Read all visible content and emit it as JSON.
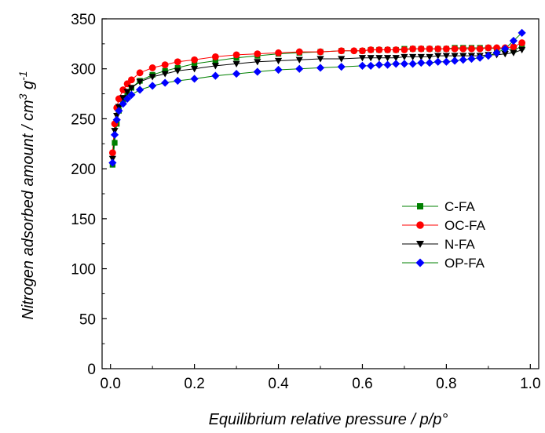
{
  "chart_data": {
    "type": "scatter",
    "title": "",
    "xlabel": "Equilibrium relative pressure / p/p°",
    "ylabel_main": "Nitrogen adsorbed amount / cm",
    "ylabel_sup1": "3",
    "ylabel_mid": " g",
    "ylabel_sup2": "-1",
    "xlim": [
      -0.02,
      1.02
    ],
    "ylim": [
      0,
      350
    ],
    "x_ticks": [
      "0.0",
      "0.2",
      "0.4",
      "0.6",
      "0.8",
      "1.0"
    ],
    "y_ticks": [
      "0",
      "50",
      "100",
      "150",
      "200",
      "250",
      "300",
      "350"
    ],
    "grid": false,
    "legend_position": "center-right",
    "series": [
      {
        "name": "C-FA",
        "marker": "square",
        "color": "#008000",
        "line_color": "#008000",
        "x": [
          0.005,
          0.01,
          0.015,
          0.02,
          0.03,
          0.04,
          0.05,
          0.07,
          0.1,
          0.13,
          0.16,
          0.2,
          0.25,
          0.3,
          0.35,
          0.4,
          0.45,
          0.5,
          0.55,
          0.6,
          0.62,
          0.64,
          0.66,
          0.68,
          0.7,
          0.72,
          0.74,
          0.76,
          0.78,
          0.8,
          0.82,
          0.84,
          0.86,
          0.88,
          0.9,
          0.92,
          0.94,
          0.96,
          0.98
        ],
        "y": [
          204,
          226,
          245,
          258,
          268,
          276,
          281,
          288,
          294,
          298,
          301,
          305,
          308,
          311,
          313,
          315,
          316,
          317,
          318,
          318,
          319,
          319,
          319,
          319,
          320,
          320,
          320,
          320,
          320,
          320,
          321,
          321,
          321,
          321,
          321,
          320,
          320,
          319,
          322
        ]
      },
      {
        "name": "OC-FA",
        "marker": "circle",
        "color": "#ff0000",
        "line_color": "#ff0000",
        "x": [
          0.005,
          0.01,
          0.015,
          0.02,
          0.03,
          0.04,
          0.05,
          0.07,
          0.1,
          0.13,
          0.16,
          0.2,
          0.25,
          0.3,
          0.35,
          0.4,
          0.45,
          0.5,
          0.55,
          0.58,
          0.6,
          0.62,
          0.64,
          0.66,
          0.68,
          0.7,
          0.72,
          0.74,
          0.76,
          0.78,
          0.8,
          0.82,
          0.84,
          0.86,
          0.88,
          0.9,
          0.92,
          0.94,
          0.96,
          0.98
        ],
        "y": [
          216,
          245,
          261,
          270,
          279,
          285,
          289,
          296,
          301,
          304,
          307,
          309,
          312,
          314,
          315,
          316,
          317,
          317,
          318,
          318,
          318,
          319,
          319,
          319,
          319,
          319,
          320,
          320,
          320,
          320,
          320,
          320,
          320,
          320,
          320,
          321,
          321,
          321,
          322,
          326
        ]
      },
      {
        "name": "N-FA",
        "marker": "triangle-down",
        "color": "#000000",
        "line_color": "#000000",
        "x": [
          0.005,
          0.01,
          0.015,
          0.02,
          0.03,
          0.04,
          0.05,
          0.07,
          0.1,
          0.13,
          0.16,
          0.2,
          0.25,
          0.3,
          0.35,
          0.4,
          0.45,
          0.5,
          0.55,
          0.6,
          0.62,
          0.64,
          0.66,
          0.68,
          0.7,
          0.72,
          0.74,
          0.76,
          0.78,
          0.8,
          0.82,
          0.84,
          0.86,
          0.88,
          0.9,
          0.92,
          0.94,
          0.96,
          0.98
        ],
        "y": [
          210,
          238,
          253,
          262,
          271,
          277,
          281,
          287,
          292,
          295,
          298,
          300,
          303,
          305,
          307,
          308,
          309,
          310,
          310,
          311,
          311,
          311,
          311,
          311,
          312,
          312,
          312,
          312,
          313,
          313,
          313,
          313,
          313,
          313,
          314,
          314,
          315,
          316,
          319
        ]
      },
      {
        "name": "OP-FA",
        "marker": "diamond",
        "color": "#0000ff",
        "line_color": "#008000",
        "x": [
          0.005,
          0.01,
          0.015,
          0.02,
          0.03,
          0.04,
          0.05,
          0.07,
          0.1,
          0.13,
          0.16,
          0.2,
          0.25,
          0.3,
          0.35,
          0.4,
          0.45,
          0.5,
          0.55,
          0.6,
          0.62,
          0.64,
          0.66,
          0.68,
          0.7,
          0.72,
          0.74,
          0.76,
          0.78,
          0.8,
          0.82,
          0.84,
          0.86,
          0.88,
          0.9,
          0.92,
          0.94,
          0.96,
          0.98
        ],
        "y": [
          206,
          234,
          249,
          258,
          265,
          270,
          274,
          279,
          283,
          286,
          288,
          290,
          293,
          295,
          297,
          299,
          300,
          301,
          302,
          303,
          303,
          304,
          304,
          305,
          305,
          305,
          306,
          306,
          307,
          307,
          308,
          309,
          310,
          311,
          313,
          316,
          320,
          328,
          336
        ]
      }
    ]
  }
}
